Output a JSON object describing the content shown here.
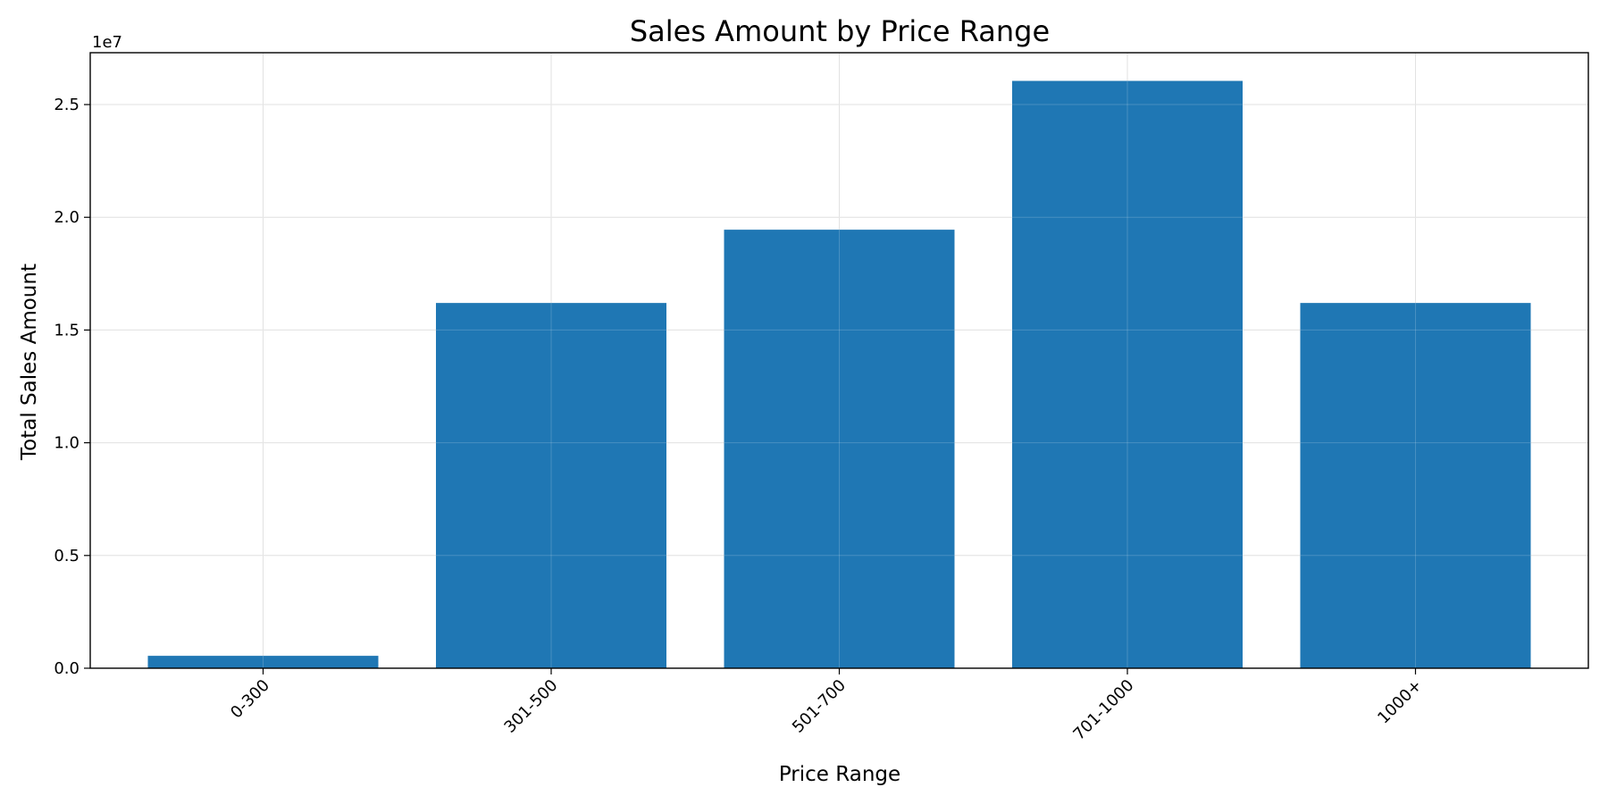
{
  "chart_data": {
    "type": "bar",
    "title": "Sales Amount by Price Range",
    "xlabel": "Price Range",
    "ylabel": "Total Sales Amount",
    "y_offset_label": "1e7",
    "y_scale": 10000000,
    "categories": [
      "0-300",
      "301-500",
      "501-700",
      "701-1000",
      "1000+"
    ],
    "values": [
      550000,
      16200000,
      19450000,
      26050000,
      16200000
    ],
    "ylim": [
      0,
      27300000
    ],
    "yticks": [
      0,
      5000000,
      10000000,
      15000000,
      20000000,
      25000000
    ],
    "ytick_labels": [
      "0.0",
      "0.5",
      "1.0",
      "1.5",
      "2.0",
      "2.5"
    ],
    "grid": true,
    "bar_color": "#1f77b4"
  }
}
